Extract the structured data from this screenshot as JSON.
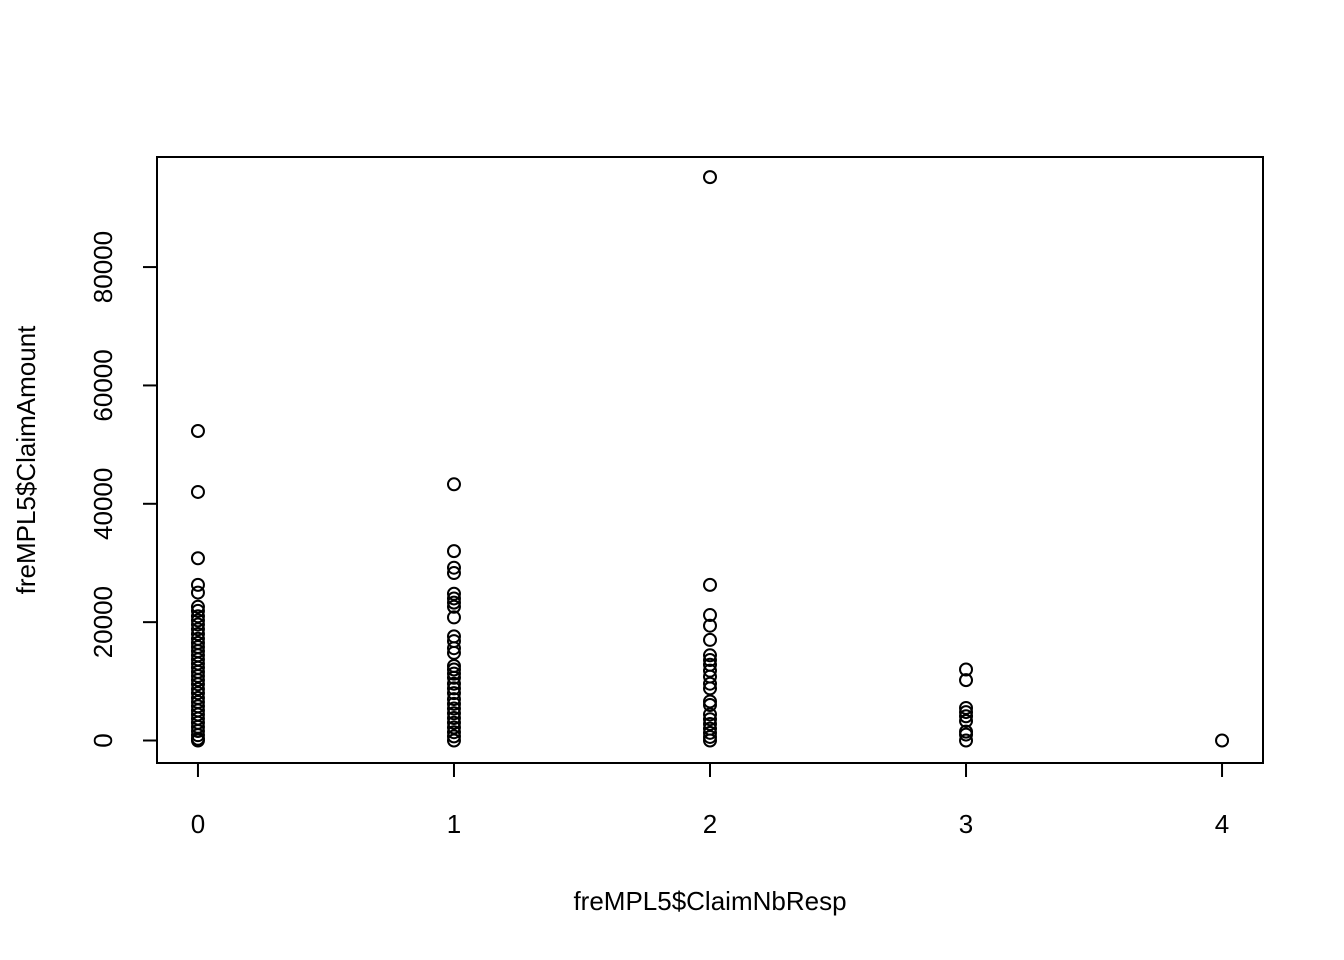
{
  "chart_data": {
    "type": "scatter",
    "title": "",
    "xlabel": "freMPL5$ClaimNbResp",
    "ylabel": "freMPL5$ClaimAmount",
    "xlim": [
      -0.16,
      4.16
    ],
    "ylim": [
      -3800,
      98600
    ],
    "x_ticks": [
      0,
      1,
      2,
      3,
      4
    ],
    "x_tick_labels": [
      "0",
      "1",
      "2",
      "3",
      "4"
    ],
    "y_ticks": [
      0,
      20000,
      40000,
      60000,
      80000
    ],
    "y_tick_labels": [
      "0",
      "20000",
      "40000",
      "60000",
      "80000"
    ],
    "grid": false,
    "legend": "none",
    "series": [
      {
        "points": [
          [
            0,
            52300
          ],
          [
            0,
            42000
          ],
          [
            0,
            30800
          ],
          [
            0,
            26300
          ],
          [
            0,
            25000
          ],
          [
            0,
            22600
          ],
          [
            0,
            21900
          ],
          [
            0,
            21000
          ],
          [
            0,
            20300
          ],
          [
            0,
            19600
          ],
          [
            0,
            18800
          ],
          [
            0,
            18000
          ],
          [
            0,
            17200
          ],
          [
            0,
            16500
          ],
          [
            0,
            15800
          ],
          [
            0,
            15100
          ],
          [
            0,
            14400
          ],
          [
            0,
            13700
          ],
          [
            0,
            13000
          ],
          [
            0,
            12300
          ],
          [
            0,
            11600
          ],
          [
            0,
            10900
          ],
          [
            0,
            10200
          ],
          [
            0,
            9500
          ],
          [
            0,
            8700
          ],
          [
            0,
            8000
          ],
          [
            0,
            7200
          ],
          [
            0,
            6500
          ],
          [
            0,
            5800
          ],
          [
            0,
            5100
          ],
          [
            0,
            4400
          ],
          [
            0,
            3700
          ],
          [
            0,
            3000
          ],
          [
            0,
            2300
          ],
          [
            0,
            1600
          ],
          [
            0,
            900
          ],
          [
            0,
            300
          ],
          [
            0,
            0
          ],
          [
            1,
            43300
          ],
          [
            1,
            32000
          ],
          [
            1,
            29200
          ],
          [
            1,
            28300
          ],
          [
            1,
            24800
          ],
          [
            1,
            24000
          ],
          [
            1,
            23300
          ],
          [
            1,
            22600
          ],
          [
            1,
            20800
          ],
          [
            1,
            17600
          ],
          [
            1,
            16800
          ],
          [
            1,
            15600
          ],
          [
            1,
            14800
          ],
          [
            1,
            12600
          ],
          [
            1,
            12000
          ],
          [
            1,
            11300
          ],
          [
            1,
            10600
          ],
          [
            1,
            9600
          ],
          [
            1,
            8800
          ],
          [
            1,
            8000
          ],
          [
            1,
            7000
          ],
          [
            1,
            6200
          ],
          [
            1,
            5400
          ],
          [
            1,
            4600
          ],
          [
            1,
            3800
          ],
          [
            1,
            3000
          ],
          [
            1,
            2200
          ],
          [
            1,
            1400
          ],
          [
            1,
            700
          ],
          [
            1,
            0
          ],
          [
            2,
            95200
          ],
          [
            2,
            26300
          ],
          [
            2,
            21200
          ],
          [
            2,
            19400
          ],
          [
            2,
            17000
          ],
          [
            2,
            14400
          ],
          [
            2,
            13600
          ],
          [
            2,
            12800
          ],
          [
            2,
            11800
          ],
          [
            2,
            10800
          ],
          [
            2,
            9600
          ],
          [
            2,
            8800
          ],
          [
            2,
            6600
          ],
          [
            2,
            6000
          ],
          [
            2,
            4400
          ],
          [
            2,
            3600
          ],
          [
            2,
            2800
          ],
          [
            2,
            2000
          ],
          [
            2,
            1300
          ],
          [
            2,
            600
          ],
          [
            2,
            0
          ],
          [
            3,
            12000
          ],
          [
            3,
            10200
          ],
          [
            3,
            5500
          ],
          [
            3,
            4800
          ],
          [
            3,
            4100
          ],
          [
            3,
            3300
          ],
          [
            3,
            1500
          ],
          [
            3,
            1000
          ],
          [
            3,
            0
          ],
          [
            4,
            0
          ]
        ]
      }
    ]
  }
}
